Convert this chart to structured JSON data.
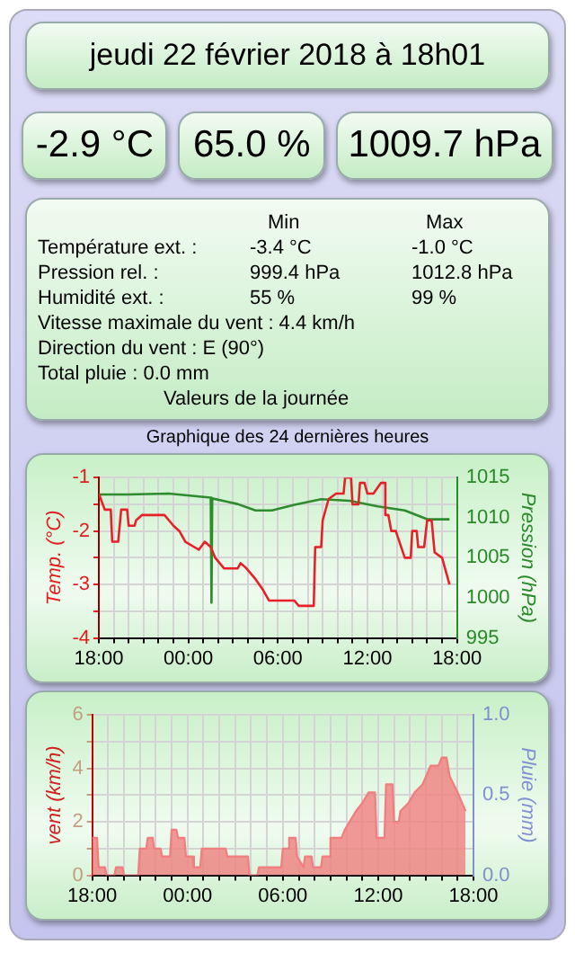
{
  "chart_data": [
    {
      "type": "other",
      "title": "jeudi 22 février 2018 à 18h01",
      "annotations": [
        "-2.9 °C",
        "65.0 %",
        "1009.7 hPa",
        "Min",
        "Max",
        "Température ext. :",
        "-3.4 °C",
        "-1.0 °C",
        "Pression rel. :",
        "999.4 hPa",
        "1012.8 hPa",
        "Humidité ext. :",
        "55 %",
        "99 %",
        "Vitesse maximale du vent : 4.4 km/h",
        "Direction du vent : E (90°)",
        "Total pluie : 0.0 mm",
        "Valeurs de la journée"
      ]
    },
    {
      "type": "line",
      "title": "Graphique des 24 dernières heures",
      "ylabel": "Temp. (°C)",
      "y2label": "Pression (hPa)",
      "xlim": [
        "2018-02-21T18:00",
        "2018-02-22T18:00"
      ],
      "xticks": [
        {
          "value": "2018-02-21T18:00",
          "label": "18:00"
        },
        {
          "value": "2018-02-21T19:00",
          "label": null
        },
        {
          "value": "2018-02-21T20:00",
          "label": null
        },
        {
          "value": "2018-02-21T21:00",
          "label": null
        },
        {
          "value": "2018-02-21T22:00",
          "label": null
        },
        {
          "value": "2018-02-21T23:00",
          "label": null
        },
        {
          "value": "2018-02-22T00:00",
          "label": "00:00"
        },
        {
          "value": "2018-02-22T01:00",
          "label": null
        },
        {
          "value": "2018-02-22T02:00",
          "label": null
        },
        {
          "value": "2018-02-22T03:00",
          "label": null
        },
        {
          "value": "2018-02-22T04:00",
          "label": null
        },
        {
          "value": "2018-02-22T05:00",
          "label": null
        },
        {
          "value": "2018-02-22T06:00",
          "label": "06:00"
        },
        {
          "value": "2018-02-22T07:00",
          "label": null
        },
        {
          "value": "2018-02-22T08:00",
          "label": null
        },
        {
          "value": "2018-02-22T09:00",
          "label": null
        },
        {
          "value": "2018-02-22T10:00",
          "label": null
        },
        {
          "value": "2018-02-22T11:00",
          "label": null
        },
        {
          "value": "2018-02-22T12:00",
          "label": "12:00"
        },
        {
          "value": "2018-02-22T13:00",
          "label": null
        },
        {
          "value": "2018-02-22T14:00",
          "label": null
        },
        {
          "value": "2018-02-22T15:00",
          "label": null
        },
        {
          "value": "2018-02-22T16:00",
          "label": null
        },
        {
          "value": "2018-02-22T17:00",
          "label": null
        },
        {
          "value": "2018-02-22T18:00",
          "label": "18:00"
        }
      ],
      "ylim": [
        -4,
        -1
      ],
      "yticks": [
        -4,
        {
          "value": -3.5,
          "label": null
        },
        -3,
        {
          "value": -2.5,
          "label": null
        },
        -2,
        {
          "value": -1.5,
          "label": null
        },
        -1
      ],
      "y2lim": [
        995,
        1015
      ],
      "y2ticks": [
        995,
        1000,
        1005,
        1010,
        1015
      ],
      "grid": true,
      "series": [
        {
          "color": "#e8202a",
          "x": [
            "2018-02-21T18:00",
            "2018-02-21T18:24",
            "2018-02-21T18:48",
            "2018-02-21T18:54",
            "2018-02-21T19:18",
            "2018-02-21T19:30",
            "2018-02-21T19:54",
            "2018-02-21T20:00",
            "2018-02-21T20:24",
            "2018-02-21T20:30",
            "2018-02-21T20:54",
            "2018-02-21T22:24",
            "2018-02-21T22:42",
            "2018-02-21T23:00",
            "2018-02-21T23:24",
            "2018-02-21T23:48",
            "2018-02-22T00:24",
            "2018-02-22T00:42",
            "2018-02-22T01:06",
            "2018-02-22T01:30",
            "2018-02-22T01:48",
            "2018-02-22T02:24",
            "2018-02-22T03:18",
            "2018-02-22T03:30",
            "2018-02-22T03:54",
            "2018-02-22T04:30",
            "2018-02-22T05:00",
            "2018-02-22T05:24",
            "2018-02-22T07:06",
            "2018-02-22T07:24",
            "2018-02-22T08:24",
            "2018-02-22T08:30",
            "2018-02-22T08:54",
            "2018-02-22T09:00",
            "2018-02-22T09:24",
            "2018-02-22T09:54",
            "2018-02-22T10:24",
            "2018-02-22T10:30",
            "2018-02-22T10:54",
            "2018-02-22T11:00",
            "2018-02-22T11:24",
            "2018-02-22T11:30",
            "2018-02-22T11:48",
            "2018-02-22T12:00",
            "2018-02-22T12:24",
            "2018-02-22T12:54",
            "2018-02-22T13:12",
            "2018-02-22T13:12",
            "2018-02-22T13:24",
            "2018-02-22T13:36",
            "2018-02-22T13:54",
            "2018-02-22T14:30",
            "2018-02-22T14:54",
            "2018-02-22T15:00",
            "2018-02-22T15:18",
            "2018-02-22T15:24",
            "2018-02-22T15:48",
            "2018-02-22T16:00",
            "2018-02-22T16:18",
            "2018-02-22T16:30",
            "2018-02-22T17:00",
            "2018-02-22T17:30"
          ],
          "values": [
            -1.3,
            -1.6,
            -1.6,
            -2.2,
            -2.2,
            -1.6,
            -1.6,
            -1.9,
            -1.9,
            -1.8,
            -1.7,
            -1.7,
            -1.8,
            -1.9,
            -2.0,
            -2.2,
            -2.3,
            -2.35,
            -2.2,
            -2.3,
            -2.5,
            -2.7,
            -2.7,
            -2.6,
            -2.7,
            -2.9,
            -3.1,
            -3.3,
            -3.3,
            -3.4,
            -3.4,
            -2.3,
            -2.3,
            -1.8,
            -1.4,
            -1.3,
            -1.3,
            -1.0,
            -1.0,
            -1.5,
            -1.5,
            -1.1,
            -1.1,
            -1.3,
            -1.3,
            -1.1,
            -1.1,
            -1.7,
            -1.7,
            -2.0,
            -2.0,
            -2.5,
            -2.5,
            -2.0,
            -2.0,
            -2.3,
            -2.3,
            -1.8,
            -1.8,
            -2.4,
            -2.5,
            -3.0
          ]
        },
        {
          "color": "#2e8b2e",
          "axis": "y2",
          "x": [
            "2018-02-21T18:00",
            "2018-02-21T19:54",
            "2018-02-21T22:42",
            "2018-02-22T01:30",
            "2018-02-22T01:33",
            "2018-02-22T01:36",
            "2018-02-22T03:18",
            "2018-02-22T04:30",
            "2018-02-22T05:36",
            "2018-02-22T07:06",
            "2018-02-22T08:54",
            "2018-02-22T10:48",
            "2018-02-22T12:42",
            "2018-02-22T14:30",
            "2018-02-22T16:00",
            "2018-02-22T17:30"
          ],
          "values": [
            1012.9,
            1012.9,
            1013.0,
            1012.5,
            999.4,
            1012.4,
            1011.7,
            1010.9,
            1010.9,
            1011.6,
            1012.3,
            1012.1,
            1011.4,
            1010.9,
            1009.8,
            1009.8
          ]
        }
      ]
    },
    {
      "type": "area",
      "ylabel": "vent (km/h)",
      "y2label": "Pluie (mm)",
      "xlim": [
        "2018-02-21T18:00",
        "2018-02-22T18:00"
      ],
      "xticks": [
        {
          "value": "2018-02-21T18:00",
          "label": "18:00"
        },
        {
          "value": "2018-02-21T19:00",
          "label": null
        },
        {
          "value": "2018-02-21T20:00",
          "label": null
        },
        {
          "value": "2018-02-21T21:00",
          "label": null
        },
        {
          "value": "2018-02-21T22:00",
          "label": null
        },
        {
          "value": "2018-02-21T23:00",
          "label": null
        },
        {
          "value": "2018-02-22T00:00",
          "label": "00:00"
        },
        {
          "value": "2018-02-22T01:00",
          "label": null
        },
        {
          "value": "2018-02-22T02:00",
          "label": null
        },
        {
          "value": "2018-02-22T03:00",
          "label": null
        },
        {
          "value": "2018-02-22T04:00",
          "label": null
        },
        {
          "value": "2018-02-22T05:00",
          "label": null
        },
        {
          "value": "2018-02-22T06:00",
          "label": "06:00"
        },
        {
          "value": "2018-02-22T07:00",
          "label": null
        },
        {
          "value": "2018-02-22T08:00",
          "label": null
        },
        {
          "value": "2018-02-22T09:00",
          "label": null
        },
        {
          "value": "2018-02-22T10:00",
          "label": null
        },
        {
          "value": "2018-02-22T11:00",
          "label": null
        },
        {
          "value": "2018-02-22T12:00",
          "label": "12:00"
        },
        {
          "value": "2018-02-22T13:00",
          "label": null
        },
        {
          "value": "2018-02-22T14:00",
          "label": null
        },
        {
          "value": "2018-02-22T15:00",
          "label": null
        },
        {
          "value": "2018-02-22T16:00",
          "label": null
        },
        {
          "value": "2018-02-22T17:00",
          "label": null
        },
        {
          "value": "2018-02-22T18:00",
          "label": "18:00"
        }
      ],
      "ylim": [
        0,
        6
      ],
      "yticks": [
        0,
        {
          "value": 1,
          "label": null
        },
        2,
        {
          "value": 3,
          "label": null
        },
        4,
        {
          "value": 5,
          "label": null
        },
        6
      ],
      "y2lim": [
        0,
        1
      ],
      "y2ticks": [
        {
          "value": 0,
          "label": "0.0"
        },
        {
          "value": 0.5,
          "label": "0.5"
        },
        {
          "value": 1,
          "label": "1.0"
        }
      ],
      "grid": true,
      "series": [
        {
          "color": "#f08080",
          "x": [
            "2018-02-21T18:00",
            "2018-02-21T18:18",
            "2018-02-21T18:24",
            "2018-02-21T18:48",
            "2018-02-21T18:54",
            "2018-02-21T19:24",
            "2018-02-21T19:30",
            "2018-02-21T19:54",
            "2018-02-21T20:00",
            "2018-02-21T20:54",
            "2018-02-21T21:00",
            "2018-02-21T21:24",
            "2018-02-21T21:30",
            "2018-02-21T21:48",
            "2018-02-21T21:54",
            "2018-02-21T22:18",
            "2018-02-21T22:24",
            "2018-02-21T22:54",
            "2018-02-21T23:00",
            "2018-02-21T23:18",
            "2018-02-21T23:24",
            "2018-02-21T23:48",
            "2018-02-21T23:54",
            "2018-02-22T00:18",
            "2018-02-22T00:24",
            "2018-02-22T00:48",
            "2018-02-22T00:54",
            "2018-02-22T02:24",
            "2018-02-22T02:30",
            "2018-02-22T03:48",
            "2018-02-22T03:54",
            "2018-02-22T04:24",
            "2018-02-22T04:30",
            "2018-02-22T05:54",
            "2018-02-22T06:00",
            "2018-02-22T06:18",
            "2018-02-22T06:24",
            "2018-02-22T06:48",
            "2018-02-22T06:54",
            "2018-02-22T07:18",
            "2018-02-22T07:24",
            "2018-02-22T07:48",
            "2018-02-22T07:54",
            "2018-02-22T08:24",
            "2018-02-22T08:30",
            "2018-02-22T08:54",
            "2018-02-22T09:00",
            "2018-02-22T09:42",
            "2018-02-22T09:54",
            "2018-02-22T10:12",
            "2018-02-22T10:36",
            "2018-02-22T11:00",
            "2018-02-22T11:24",
            "2018-02-22T11:48",
            "2018-02-22T11:54",
            "2018-02-22T12:24",
            "2018-02-22T12:30",
            "2018-02-22T12:54",
            "2018-02-22T13:00",
            "2018-02-22T13:18",
            "2018-02-22T13:24",
            "2018-02-22T13:54",
            "2018-02-22T14:18",
            "2018-02-22T14:48",
            "2018-02-22T15:18",
            "2018-02-22T15:48",
            "2018-02-22T16:00",
            "2018-02-22T16:18",
            "2018-02-22T16:30",
            "2018-02-22T17:00",
            "2018-02-22T17:30"
          ],
          "values": [
            1.4,
            1.4,
            0.3,
            0.3,
            0,
            0,
            0.3,
            0.3,
            0,
            0,
            1.0,
            1.0,
            1.4,
            1.4,
            1.0,
            1.0,
            0.7,
            0.7,
            1.7,
            1.7,
            1.4,
            1.4,
            0.7,
            0.7,
            0.3,
            0.3,
            1.0,
            1.0,
            0.7,
            0.7,
            0,
            0,
            0.3,
            0.3,
            1.0,
            1.0,
            1.4,
            1.4,
            0.7,
            0.3,
            0.7,
            0.7,
            0.3,
            0.3,
            0.7,
            0.7,
            1.4,
            1.4,
            1.7,
            2.0,
            2.4,
            2.7,
            3.1,
            3.1,
            1.4,
            1.4,
            3.4,
            3.4,
            2.0,
            2.0,
            2.4,
            2.7,
            3.1,
            3.4,
            4.1,
            4.1,
            4.4,
            4.4,
            3.7,
            3.1,
            2.4
          ]
        }
      ]
    }
  ]
}
